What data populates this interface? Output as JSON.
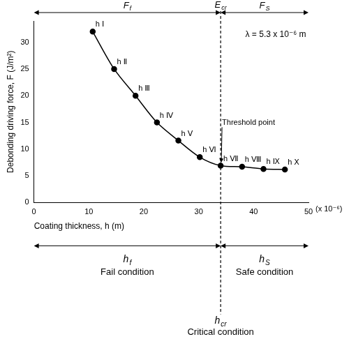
{
  "chart_data": {
    "type": "line",
    "x_label": "Coating thickness, h (m)",
    "x_unit_label": "(x 10⁻⁶)",
    "y_label": "Debonding driving force, F (J/m²)",
    "x": [
      10.7,
      14.6,
      18.5,
      22.4,
      26.3,
      30.2,
      34,
      37.9,
      41.8,
      45.7
    ],
    "values": [
      32,
      25,
      20,
      15,
      11.6,
      8.5,
      6.9,
      6.7,
      6.3,
      6.2
    ],
    "point_labels": [
      "h Ⅰ",
      "h Ⅱ",
      "h Ⅲ",
      "h Ⅳ",
      "h Ⅴ",
      "h Ⅵ",
      "h Ⅶ",
      "h Ⅷ",
      "h Ⅸ",
      "h Ⅹ"
    ],
    "color": "#000000",
    "marker": "circle",
    "xlim": [
      0,
      50
    ],
    "xticks": [
      0,
      10,
      20,
      30,
      40,
      50
    ],
    "ylim": [
      0,
      34
    ],
    "yticks": [
      0,
      5,
      10,
      15,
      20,
      25,
      30
    ],
    "grid": false,
    "threshold_x": 34,
    "annotations": {
      "lambda": "λ = 5.3 x 10⁻⁶ m",
      "threshold": "Threshold point",
      "top": {
        "left": {
          "main": "F",
          "sub": "f"
        },
        "center": {
          "main": "E",
          "sub": "cr"
        },
        "right": {
          "main": "F",
          "sub": "S"
        }
      },
      "bottom": {
        "left": {
          "main": "h",
          "sub": "f"
        },
        "center": {
          "main": "h",
          "sub": "cr"
        },
        "right": {
          "main": "h",
          "sub": "S"
        }
      },
      "conditions": {
        "left": "Fail condition",
        "center": "Critical condition",
        "right": "Safe condition"
      }
    }
  }
}
